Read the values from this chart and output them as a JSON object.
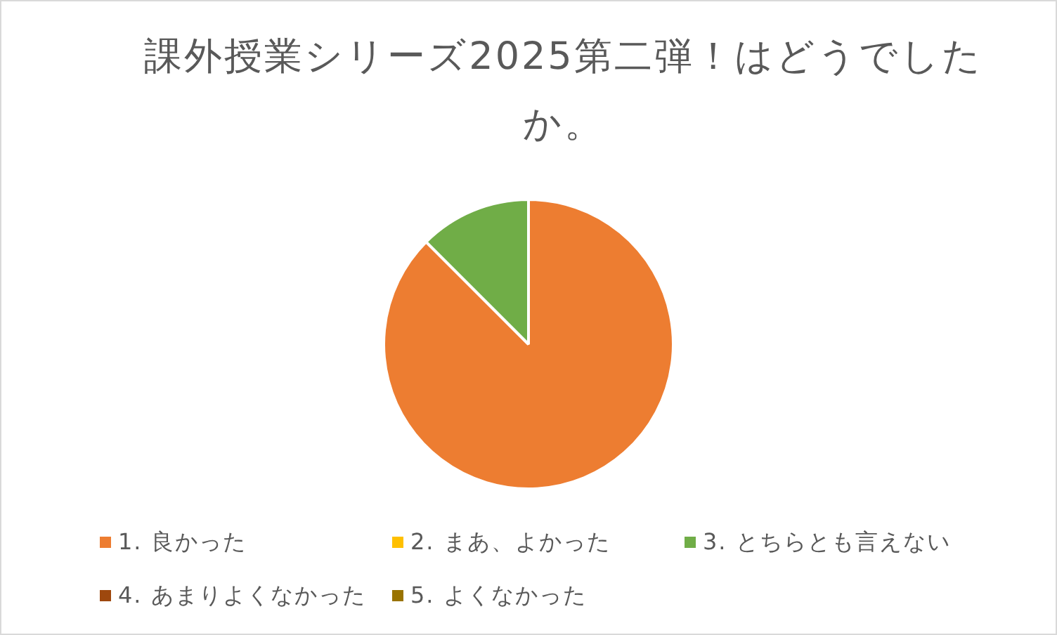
{
  "chart_data": {
    "type": "pie",
    "title": "課外授業シリーズ2025第二弾！はどうでしたか。",
    "categories": [
      "1. 良かった",
      "2. まあ、よかった",
      "3. とちらとも言えない",
      "4. あまりよくなかった",
      "5. よくなかった"
    ],
    "values": [
      87.5,
      0,
      12.5,
      0,
      0
    ],
    "colors": [
      "#ed7d31",
      "#ffc000",
      "#70ad47",
      "#9e480e",
      "#997300"
    ],
    "legend": "bottom"
  }
}
